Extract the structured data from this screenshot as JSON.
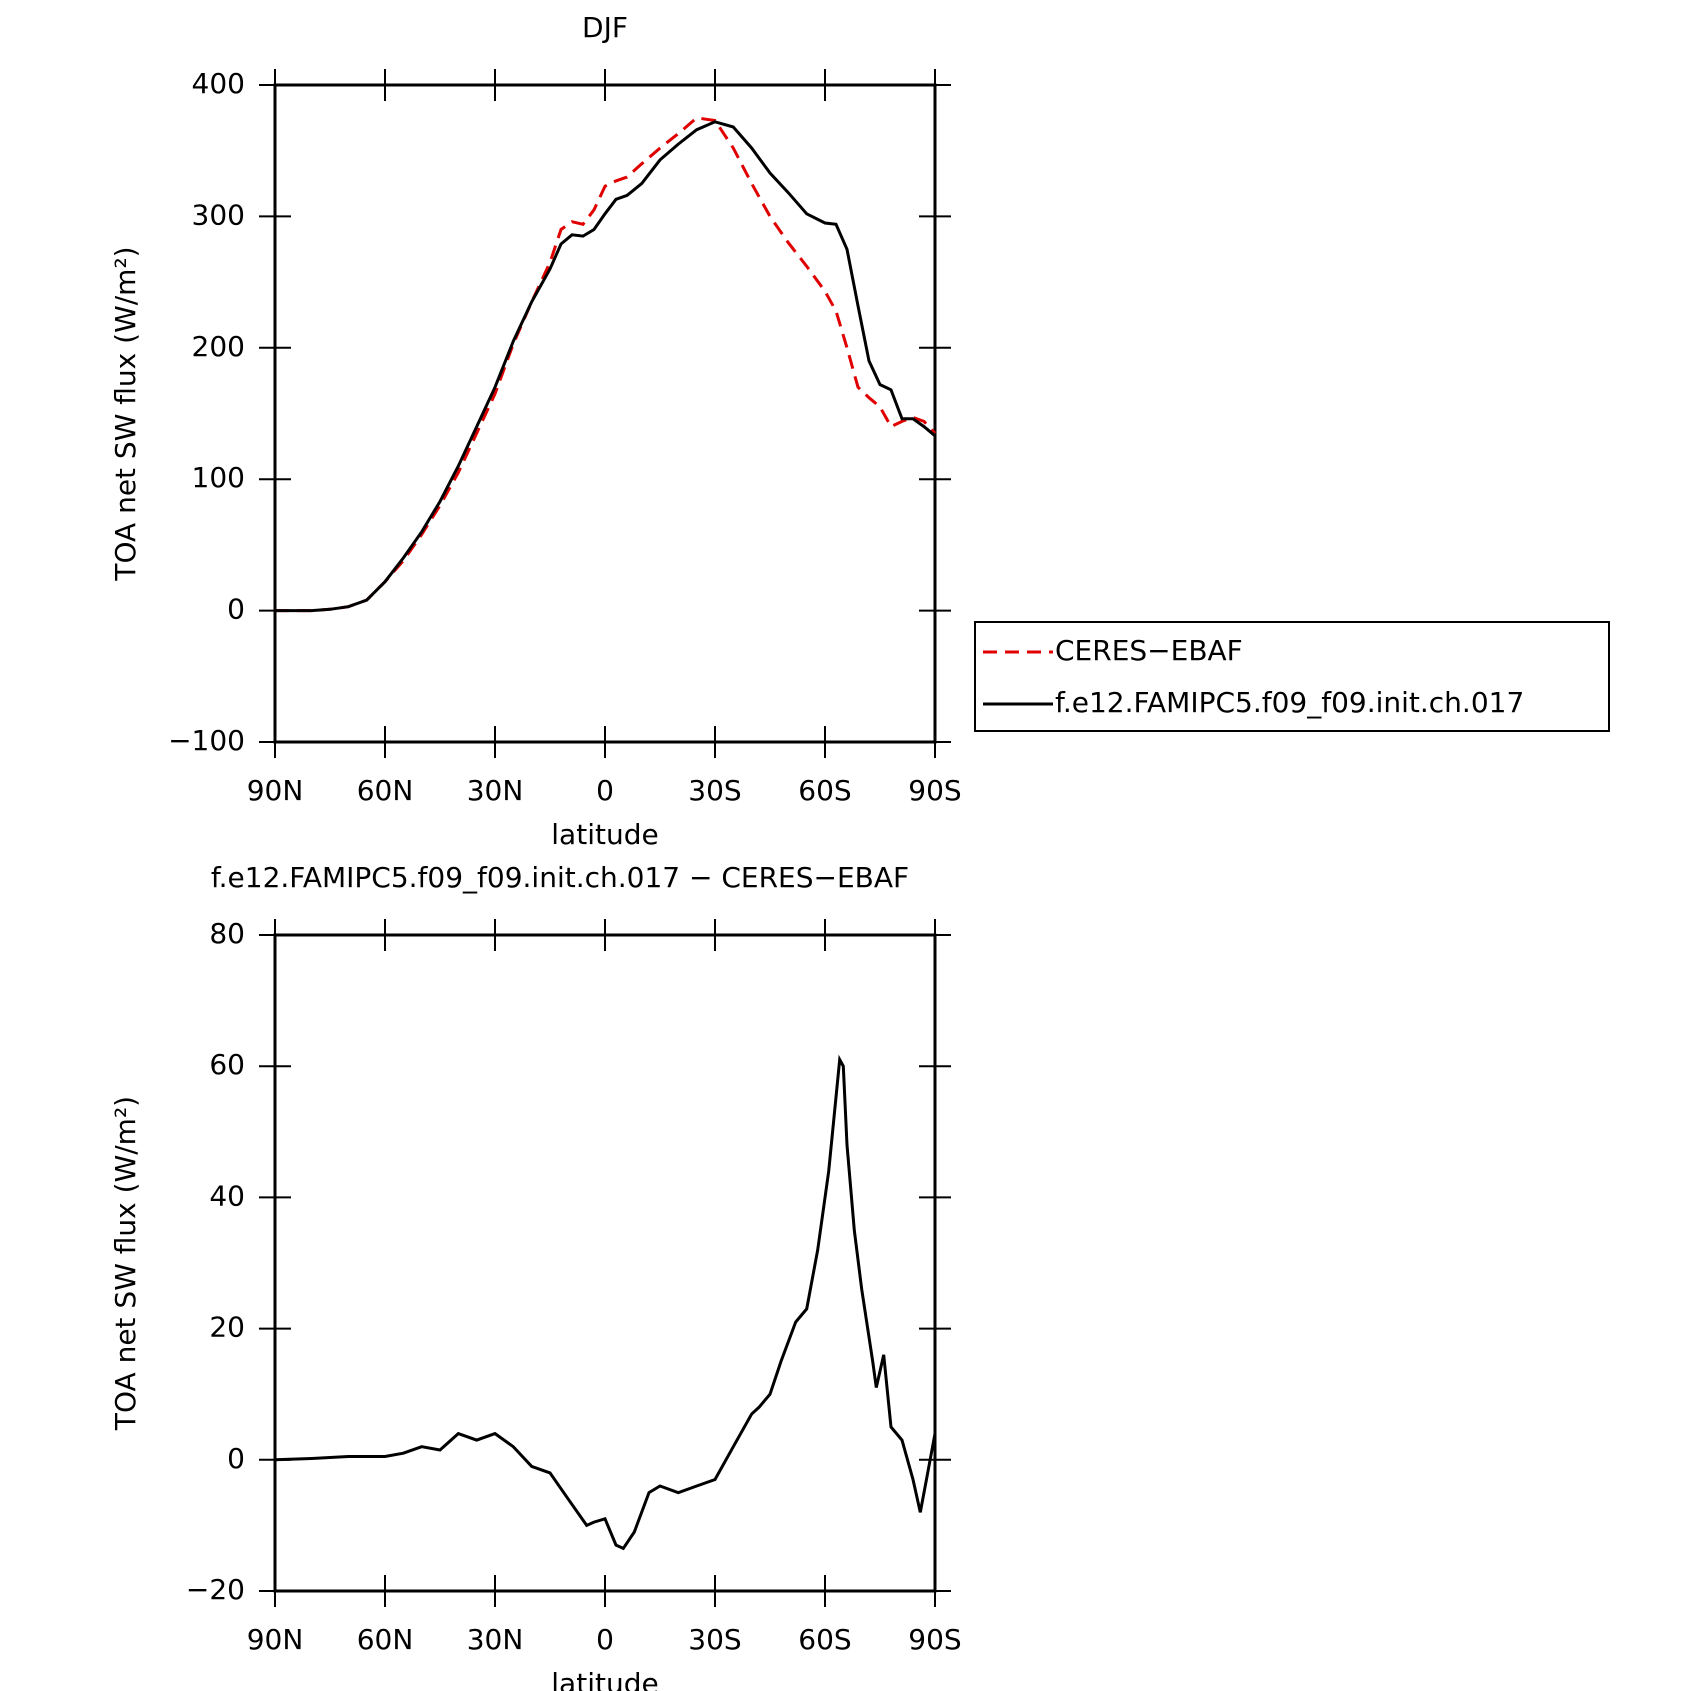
{
  "chart_data": [
    {
      "type": "line",
      "title": "DJF",
      "xlabel": "latitude",
      "ylabel": "TOA net SW flux (W/m²)",
      "xlim": [
        90,
        -90
      ],
      "xticks": [
        {
          "value": 90,
          "label": "90N"
        },
        {
          "value": 60,
          "label": "60N"
        },
        {
          "value": 30,
          "label": "30N"
        },
        0,
        {
          "value": -30,
          "label": "30S"
        },
        {
          "value": -60,
          "label": "60S"
        },
        {
          "value": -90,
          "label": "90S"
        }
      ],
      "ylim": [
        -100,
        400
      ],
      "yticks": [
        {
          "value": -100,
          "label": "−100"
        },
        0,
        100,
        200,
        300,
        400
      ],
      "legend": "right",
      "x": [
        90,
        85,
        80,
        75,
        70,
        65,
        60,
        55,
        50,
        45,
        40,
        35,
        30,
        25,
        20,
        15,
        12,
        9,
        6,
        3,
        0,
        -3,
        -6,
        -10,
        -15,
        -20,
        -25,
        -30,
        -35,
        -40,
        -45,
        -50,
        -55,
        -60,
        -63,
        -66,
        -69,
        -72,
        -75,
        -78,
        -81,
        -84,
        -87,
        -90
      ],
      "series": [
        {
          "name": "CERES−EBAF",
          "color": "#e00000",
          "dash": true,
          "values": [
            0,
            0,
            0,
            1,
            3,
            8,
            22,
            38,
            58,
            80,
            105,
            135,
            165,
            203,
            235,
            265,
            290,
            296,
            294,
            305,
            323,
            327,
            330,
            340,
            352,
            363,
            375,
            373,
            352,
            325,
            300,
            280,
            262,
            243,
            228,
            200,
            170,
            162,
            155,
            140,
            144,
            147,
            144,
            135
          ]
        },
        {
          "name": "f.e12.FAMIPC5.f09_f09.init.ch.017",
          "color": "#000000",
          "dash": false,
          "values": [
            0,
            0,
            0,
            1,
            3,
            8,
            22,
            40,
            60,
            83,
            110,
            140,
            170,
            205,
            235,
            260,
            279,
            286,
            285,
            290,
            302,
            313,
            316,
            325,
            343,
            355,
            366,
            372,
            368,
            352,
            333,
            318,
            302,
            295,
            294,
            275,
            232,
            190,
            172,
            168,
            146,
            146,
            140,
            133
          ]
        }
      ]
    },
    {
      "type": "line",
      "title": "f.e12.FAMIPC5.f09_f09.init.ch.017 − CERES−EBAF",
      "xlabel": "latitude",
      "ylabel": "TOA net SW flux (W/m²)",
      "xlim": [
        90,
        -90
      ],
      "xticks": [
        {
          "value": 90,
          "label": "90N"
        },
        {
          "value": 60,
          "label": "60N"
        },
        {
          "value": 30,
          "label": "30N"
        },
        0,
        {
          "value": -30,
          "label": "30S"
        },
        {
          "value": -60,
          "label": "60S"
        },
        {
          "value": -90,
          "label": "90S"
        }
      ],
      "ylim": [
        -20,
        80
      ],
      "yticks": [
        {
          "value": -20,
          "label": "−20"
        },
        0,
        20,
        40,
        60,
        80
      ],
      "x": [
        90,
        80,
        70,
        60,
        55,
        50,
        45,
        40,
        35,
        30,
        25,
        20,
        15,
        10,
        5,
        3,
        0,
        -3,
        -5,
        -8,
        -12,
        -15,
        -20,
        -25,
        -30,
        -35,
        -40,
        -42,
        -45,
        -48,
        -52,
        -55,
        -58,
        -61,
        -64,
        -65,
        -66,
        -68,
        -70,
        -73,
        -74,
        -76,
        -78,
        -81,
        -84,
        -86,
        -88,
        -90
      ],
      "series": [
        {
          "color": "#000000",
          "dash": false,
          "values": [
            0,
            0.2,
            0.5,
            0.5,
            1,
            2,
            1.5,
            4,
            3,
            4,
            2,
            -1,
            -2,
            -6,
            -10,
            -9.5,
            -9,
            -13,
            -13.5,
            -11,
            -5,
            -4,
            -5,
            -4,
            -3,
            2,
            7,
            8,
            10,
            15,
            21,
            23,
            32,
            44,
            61,
            60,
            48,
            35,
            26,
            15,
            11,
            16,
            5,
            3,
            -3,
            -8,
            -2,
            4
          ]
        }
      ]
    }
  ]
}
